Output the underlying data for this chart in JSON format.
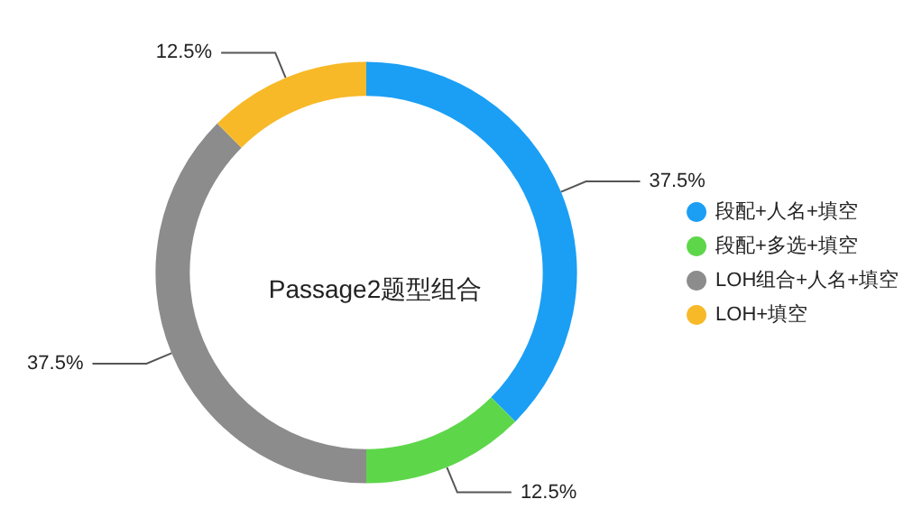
{
  "chart_data": {
    "type": "donut",
    "title": "Passage2题型组合",
    "categories": [
      "段配+人名+填空",
      "段配+多选+填空",
      "LOH组合+人名+填空",
      "LOH+填空"
    ],
    "values": [
      37.5,
      12.5,
      37.5,
      12.5
    ],
    "colors": [
      "#1a9ff5",
      "#5ed64a",
      "#8c8c8c",
      "#f7b928"
    ],
    "value_labels": [
      "37.5%",
      "12.5%",
      "37.5%",
      "12.5%"
    ],
    "legend": "right"
  }
}
